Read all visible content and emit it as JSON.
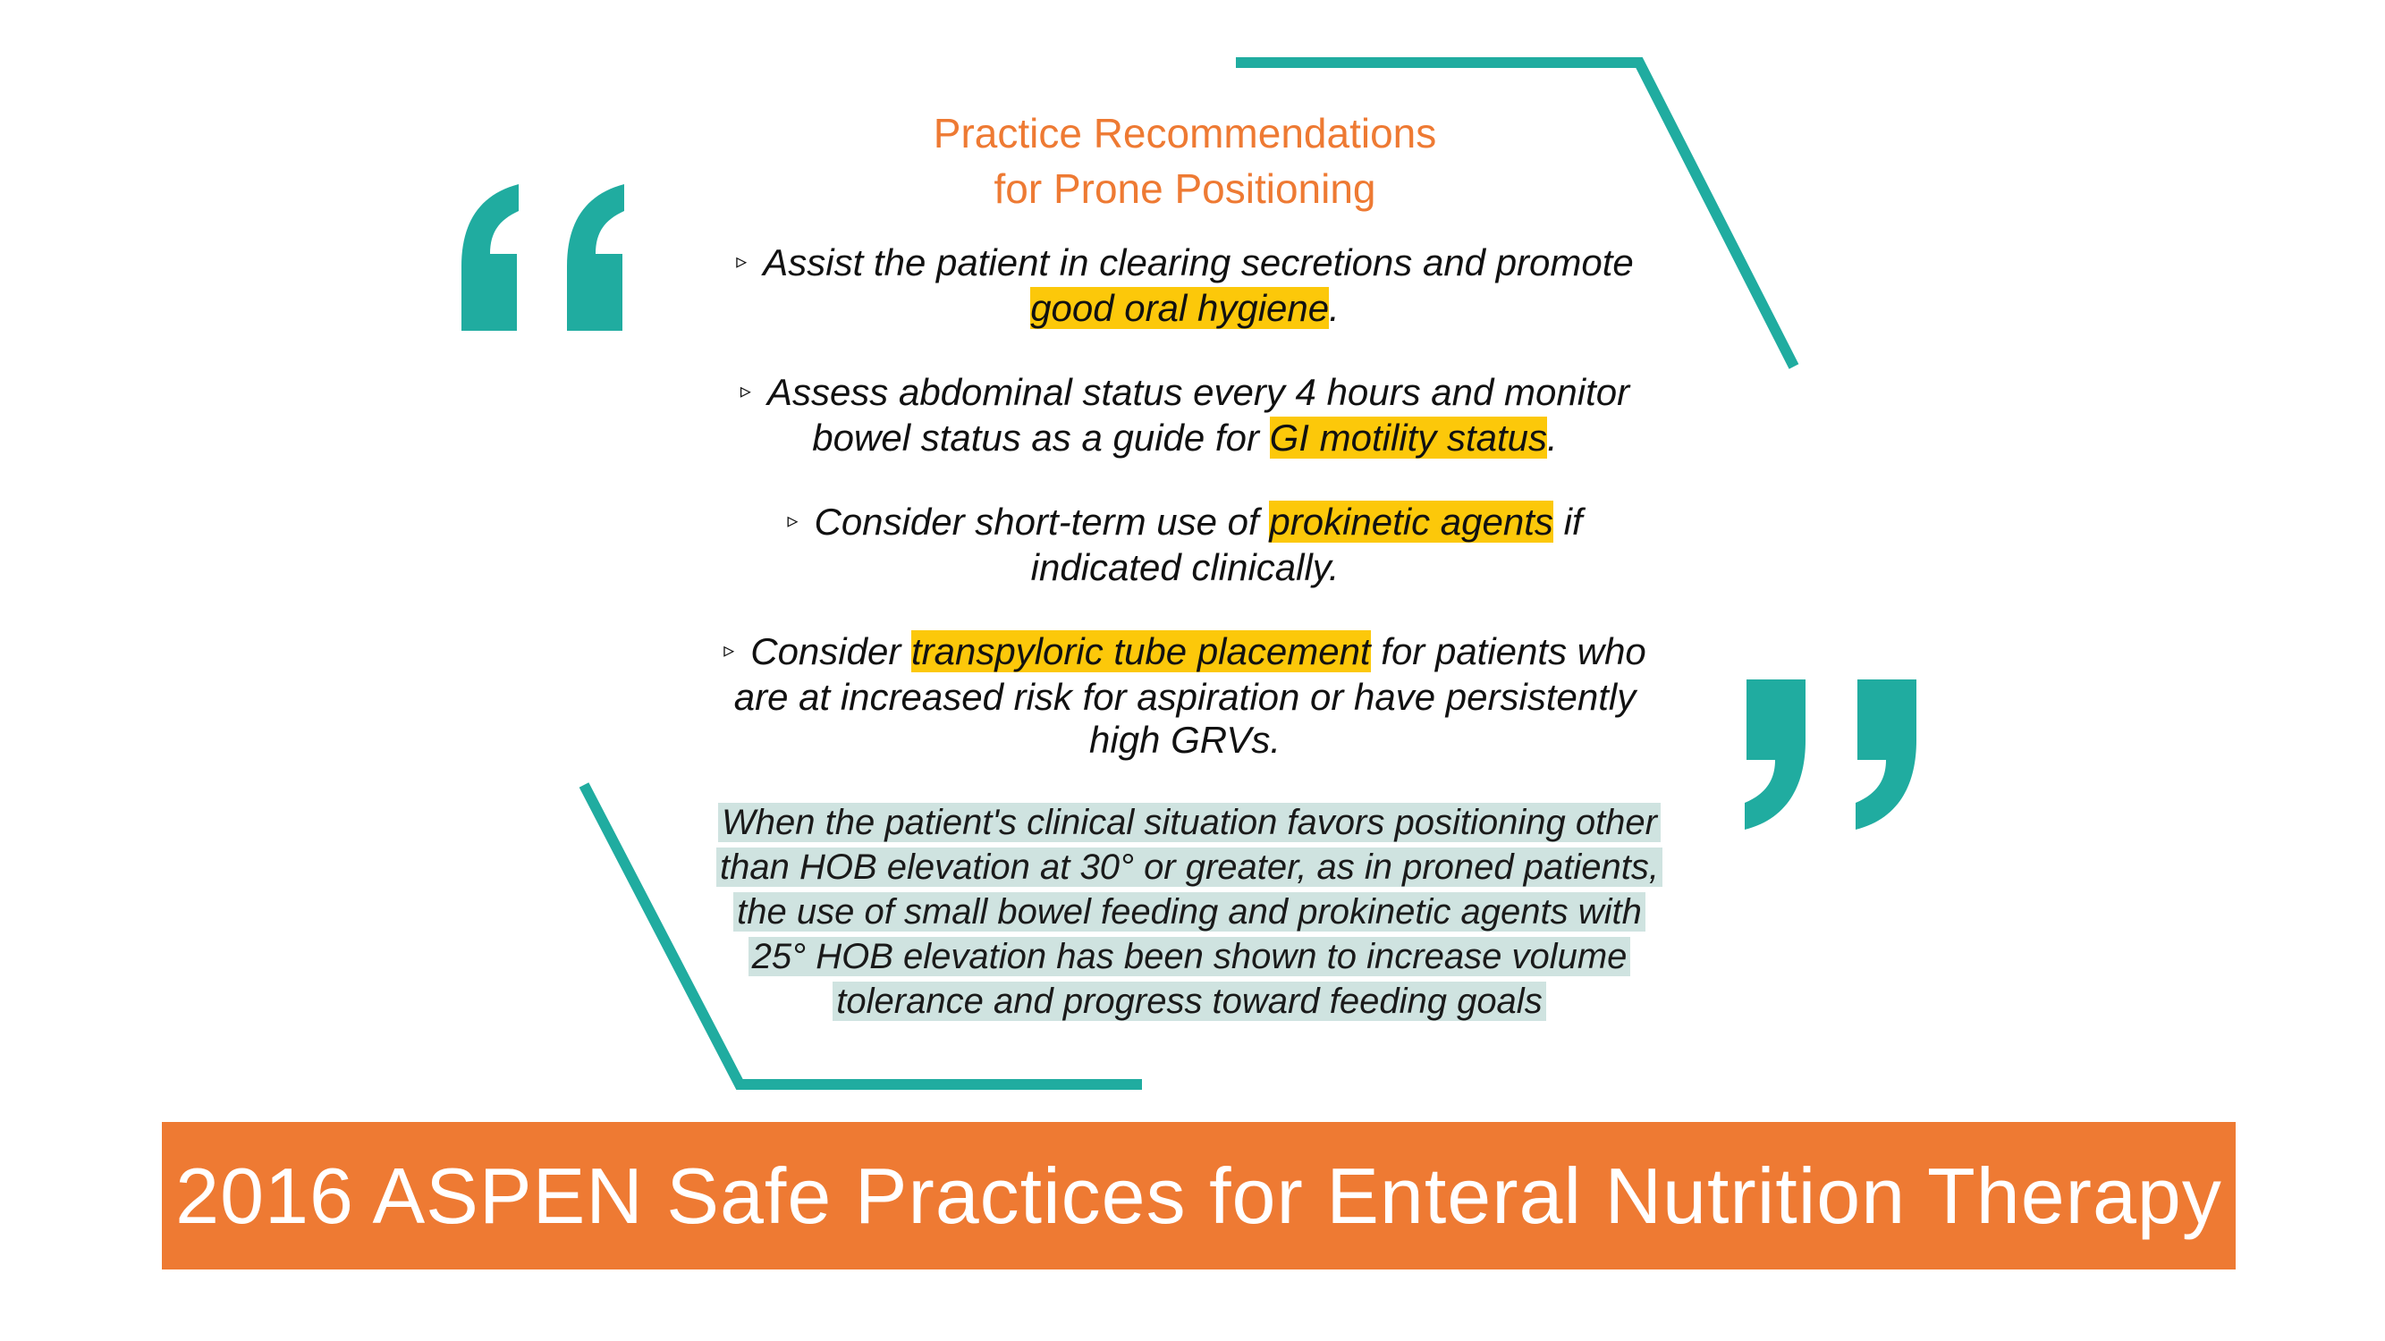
{
  "slide": {
    "title_line1": "Practice Recommendations",
    "title_line2": "for Prone Positioning",
    "bullet_marker": "▹",
    "bullets": [
      {
        "pre": "Assist the patient in clearing secretions and promote",
        "highlight": "good oral hygiene",
        "post": "."
      },
      {
        "pre_line1": "Assess abdominal status every 4 hours and monitor",
        "pre_line2": "bowel status as a guide for",
        "highlight": "GI motility status",
        "post": "."
      },
      {
        "pre": "Consider short-term use of",
        "highlight": "prokinetic agents",
        "post_line1": "if",
        "post_line2": "indicated clinically."
      },
      {
        "pre": "Consider",
        "highlight": "transpyloric tube placement",
        "post_line1": "for patients who",
        "post_line2": "are at increased risk for aspiration or have persistently",
        "post_line3": "high GRVs."
      }
    ],
    "summary_lines": [
      "When the patient's clinical situation favors positioning other",
      "than HOB elevation at 30° or greater, as in proned patients,",
      "the use of small bowel feeding and prokinetic agents with",
      "25° HOB elevation has been shown to increase volume",
      "tolerance and progress toward feeding goals"
    ],
    "banner_text": "2016 ASPEN Safe Practices for Enteral Nutrition Therapy"
  },
  "colors": {
    "accent_teal": "#20aca0",
    "title_orange": "#ee7a33",
    "highlight_yellow": "#fcc80a",
    "summary_bg": "#cfe3e0",
    "banner_bg": "#ee7a33"
  },
  "icons": {
    "open_quote": "open-quote-icon",
    "close_quote": "close-quote-icon",
    "bullet": "triangle-bullet-icon"
  }
}
